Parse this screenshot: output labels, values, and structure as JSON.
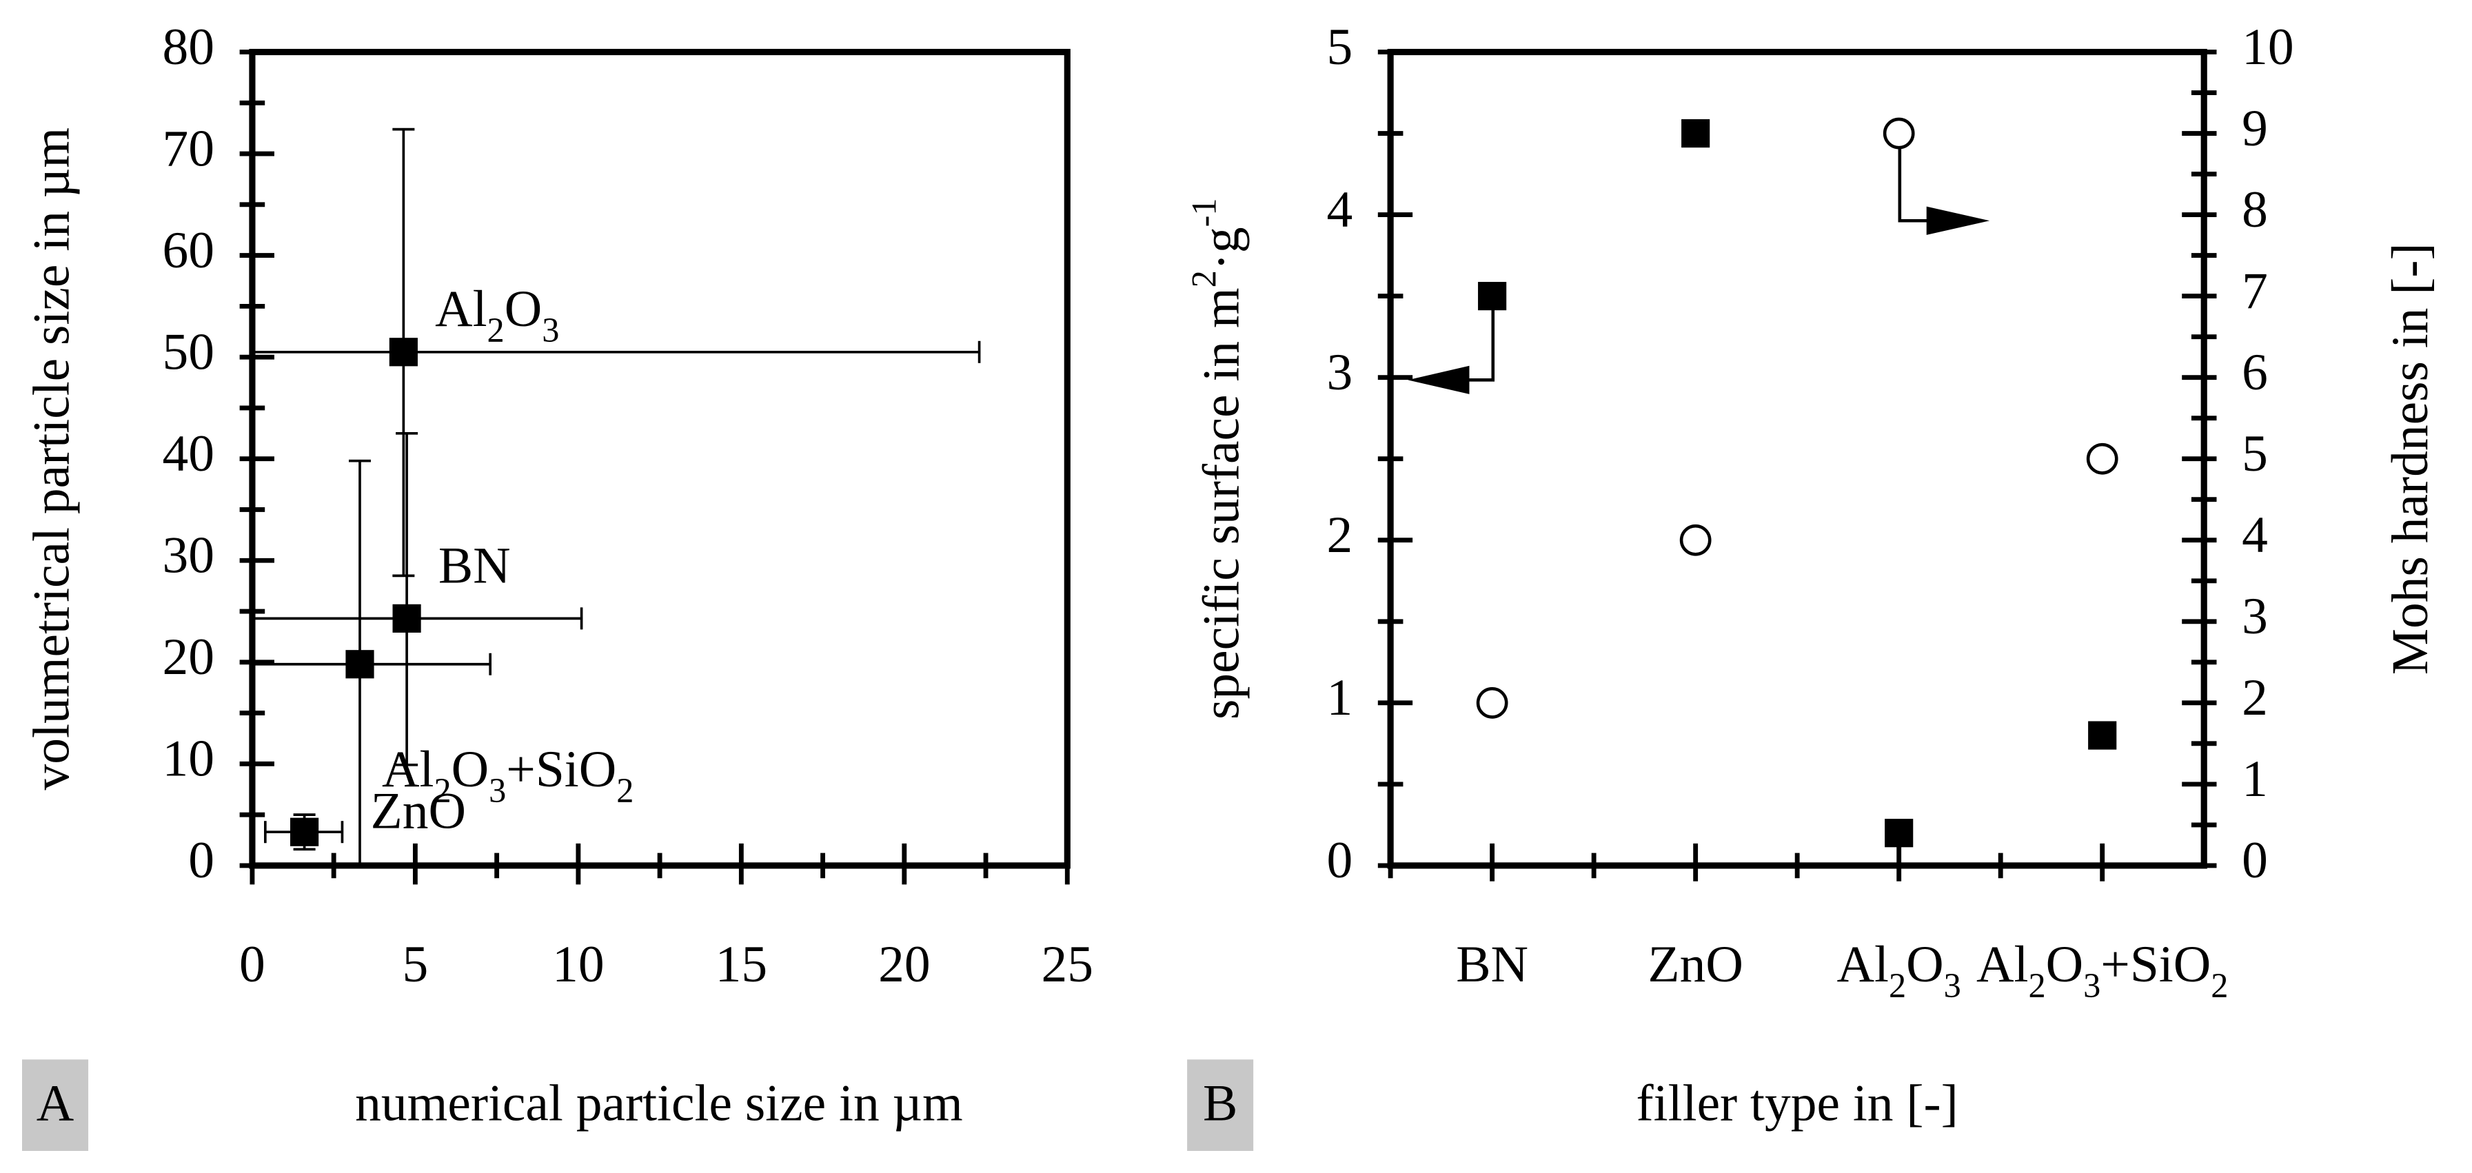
{
  "chart_data": [
    {
      "type": "errorbar-scatter",
      "panel_label": "A",
      "xlabel": "numerical particle size in µm",
      "ylabel": "volumetrical particle size in µm",
      "xlim": [
        0,
        25
      ],
      "xticks": [
        0,
        5,
        10,
        15,
        20,
        25
      ],
      "ylim": [
        0,
        80
      ],
      "yticks": [
        0,
        10,
        20,
        30,
        40,
        50,
        60,
        70,
        80
      ],
      "color": "#000000",
      "labels": [
        "Al2O3",
        "BN",
        "Al2O3+SiO2",
        "ZnO"
      ],
      "x": [
        4.64,
        4.74,
        3.3,
        1.6
      ],
      "values": [
        50.5,
        24.3,
        19.8,
        3.3
      ],
      "x_error": [
        [
          4.64,
          17.66
        ],
        [
          4.74,
          5.36
        ],
        [
          3.3,
          4.0
        ],
        [
          1.2,
          1.16
        ]
      ],
      "y_error": [
        [
          22.0,
          21.9
        ],
        [
          14.4,
          18.2
        ],
        [
          19.8,
          20.0
        ],
        [
          1.7,
          1.7
        ]
      ]
    },
    {
      "type": "dual-axis-scatter",
      "panel_label": "B",
      "xlabel": "filler type in [-]",
      "ylabel": "specific surface in m2·g-1",
      "y2label": "Mohs hardness in [-]",
      "categories": [
        "BN",
        "ZnO",
        "Al2O3",
        "Al2O3+SiO2"
      ],
      "ylim": [
        0,
        5
      ],
      "yticks": [
        0,
        1,
        2,
        3,
        4,
        5
      ],
      "y2lim": [
        0,
        10
      ],
      "y2ticks": [
        0,
        1,
        2,
        3,
        4,
        5,
        6,
        7,
        8,
        9,
        10
      ],
      "series": [
        {
          "marker": "square",
          "color": "#000000",
          "values": [
            3.5,
            4.5,
            0.2,
            0.8
          ]
        },
        {
          "marker": "circle",
          "color": "#000000",
          "axis": "y2",
          "values": [
            2,
            4,
            9,
            5
          ]
        }
      ]
    }
  ]
}
